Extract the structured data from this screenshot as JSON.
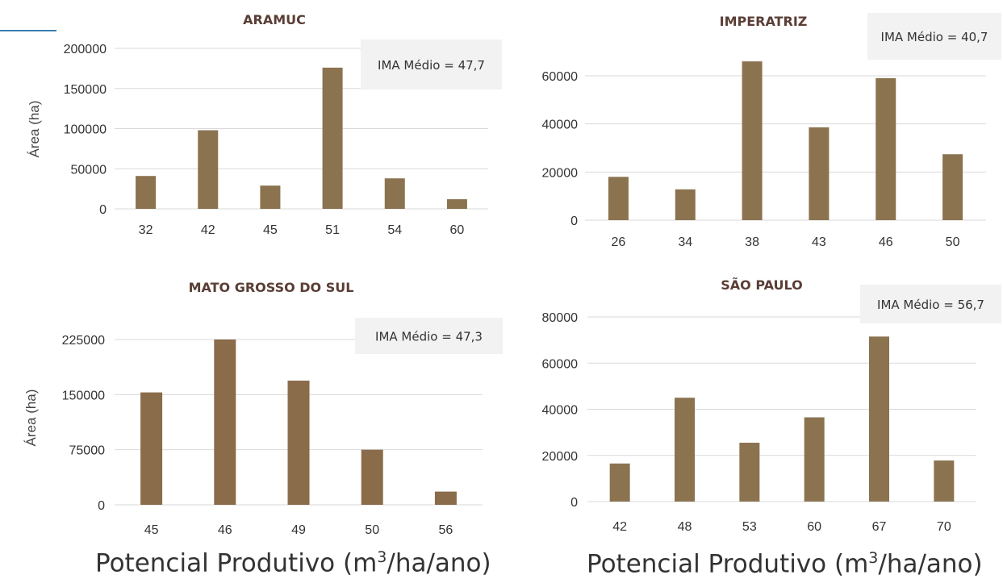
{
  "chart_data": [
    {
      "type": "bar",
      "title": "ARAMUC",
      "ylabel": "Área (ha)",
      "categories": [
        "32",
        "42",
        "45",
        "51",
        "54",
        "60"
      ],
      "values": [
        41000,
        98000,
        29000,
        176000,
        38000,
        12000
      ],
      "ylim": [
        0,
        200000
      ],
      "yticks": [
        "0",
        "50000",
        "100000",
        "150000",
        "200000"
      ],
      "annotation": "IMA Médio = 47,7",
      "grid": true
    },
    {
      "type": "bar",
      "title": "IMPERATRIZ",
      "ylabel": "",
      "categories": [
        "26",
        "34",
        "38",
        "43",
        "46",
        "50"
      ],
      "values": [
        18000,
        12800,
        66000,
        38600,
        59000,
        27400
      ],
      "ylim": [
        0,
        60000
      ],
      "yticks": [
        "0",
        "20000",
        "40000",
        "60000"
      ],
      "annotation": "IMA Médio = 40,7",
      "grid": true
    },
    {
      "type": "bar",
      "title": "MATO GROSSO DO SUL",
      "ylabel": "Área (ha)",
      "categories": [
        "45",
        "46",
        "49",
        "50",
        "56"
      ],
      "values": [
        153000,
        225000,
        169000,
        75000,
        18000
      ],
      "ylim": [
        0,
        225000
      ],
      "yticks": [
        "0",
        "75000",
        "150000",
        "225000"
      ],
      "annotation": "IMA Médio = 47,3",
      "grid": true
    },
    {
      "type": "bar",
      "title": "SÃO PAULO",
      "ylabel": "",
      "categories": [
        "42",
        "48",
        "53",
        "60",
        "67",
        "70"
      ],
      "values": [
        16500,
        45000,
        25500,
        36500,
        71500,
        17800
      ],
      "ylim": [
        0,
        80000
      ],
      "yticks": [
        "0",
        "20000",
        "40000",
        "60000",
        "80000"
      ],
      "annotation": "IMA Médio = 56,7",
      "grid": true
    }
  ],
  "xlabel_left": {
    "text": "Potencial Produtivo (m",
    "sup": "3",
    "tail": "/ha/ano)"
  },
  "xlabel_right": {
    "text": "Potencial Produtivo (m",
    "sup": "3",
    "tail": "/ha/ano)"
  },
  "colors": {
    "bar": "#8b7350",
    "bar_alt": "#8a6b4a",
    "grid": "#d9d9d9",
    "title": "#5a3e36",
    "annotation_bg": "#f2f2f2",
    "tick": "#333333"
  }
}
